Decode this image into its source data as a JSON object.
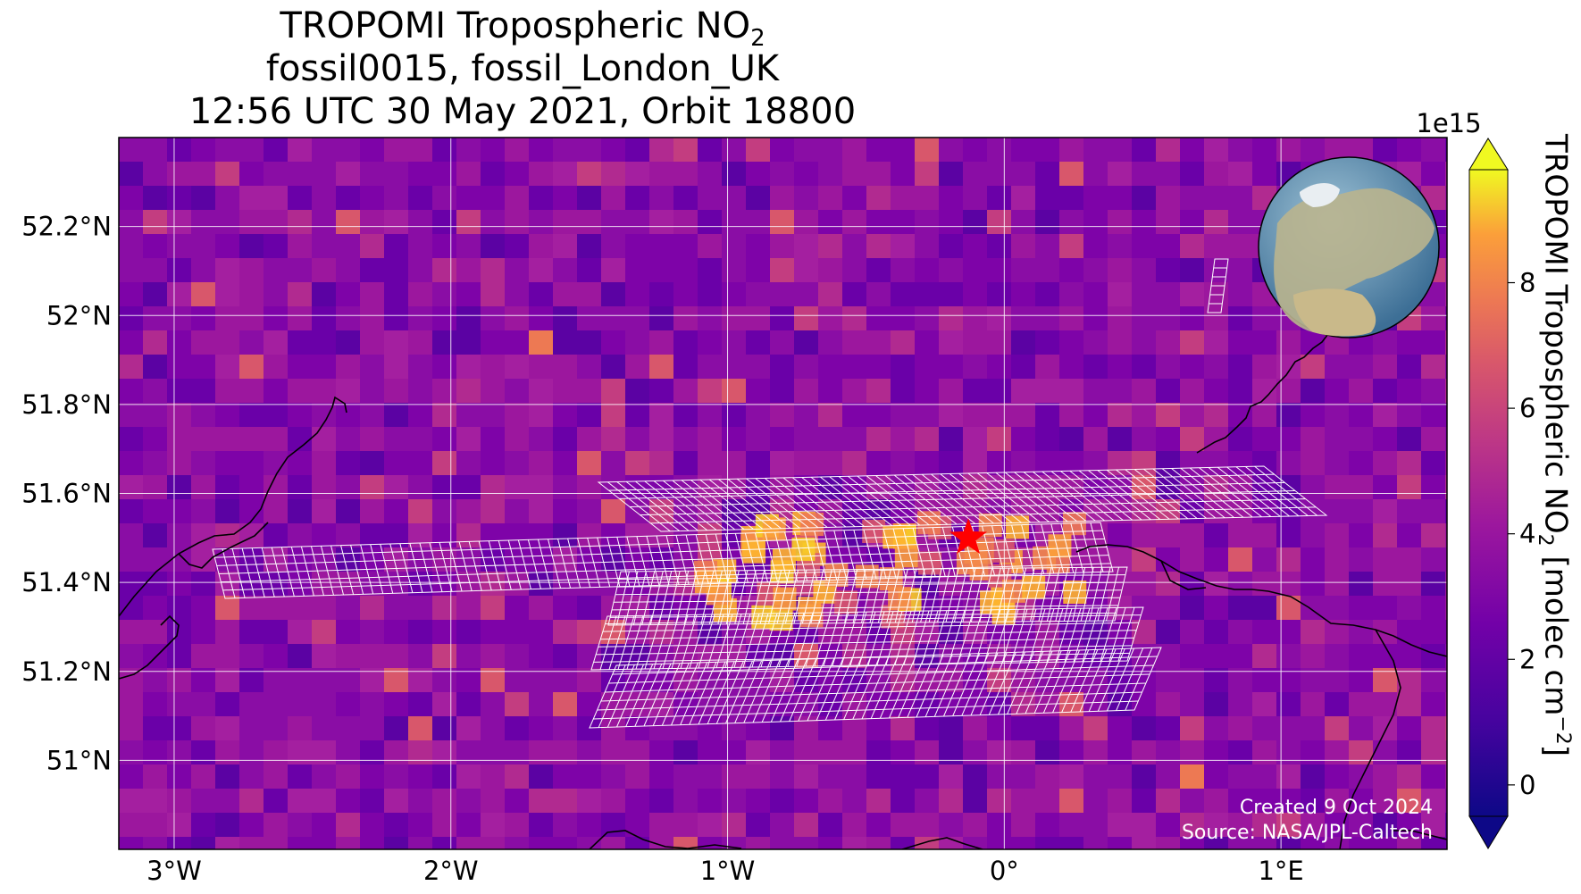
{
  "title": {
    "line1_main": "TROPOMI Tropospheric NO",
    "line1_sub": "2",
    "line2": "fossil0015, fossil_London_UK",
    "line3": "12:56 UTC 30 May 2021, Orbit 18800"
  },
  "map": {
    "lat_ticks": [
      "52.2°N",
      "52°N",
      "51.8°N",
      "51.6°N",
      "51.4°N",
      "51.2°N",
      "51°N"
    ],
    "lon_ticks": [
      "3°W",
      "2°W",
      "1°W",
      "0°",
      "1°E"
    ],
    "lat_values": [
      52.2,
      52.0,
      51.8,
      51.6,
      51.4,
      51.2,
      51.0
    ],
    "lon_values": [
      -3,
      -2,
      -1,
      0,
      1
    ],
    "lon_range": [
      -3.2,
      1.6
    ],
    "lat_range": [
      50.8,
      52.4
    ],
    "target_marker": "red-star",
    "target_lon": -0.13,
    "target_lat": 51.5,
    "target_name": "fossil_London_UK",
    "inset": "globe-locator"
  },
  "colorbar": {
    "label": "TROPOMI Tropospheric NO",
    "label_sub": "2",
    "label_unit": " [molec cm",
    "label_sup": "−2",
    "label_end": "]",
    "multiplier": "1e15",
    "ticks": [
      "0",
      "2",
      "4",
      "6",
      "8"
    ],
    "tick_values": [
      0,
      2,
      4,
      6,
      8
    ],
    "range": [
      -0.5,
      9.8
    ],
    "colormap": "plasma",
    "extend": "both"
  },
  "notes": {
    "created": "Created 9 Oct 2024",
    "source": "Source: NASA/JPL-Caltech"
  },
  "colors": {
    "background_field": "#8a1fa6",
    "coastline": "#000000",
    "footprint_grid": "#ffffff",
    "marker": "#ff0000"
  }
}
